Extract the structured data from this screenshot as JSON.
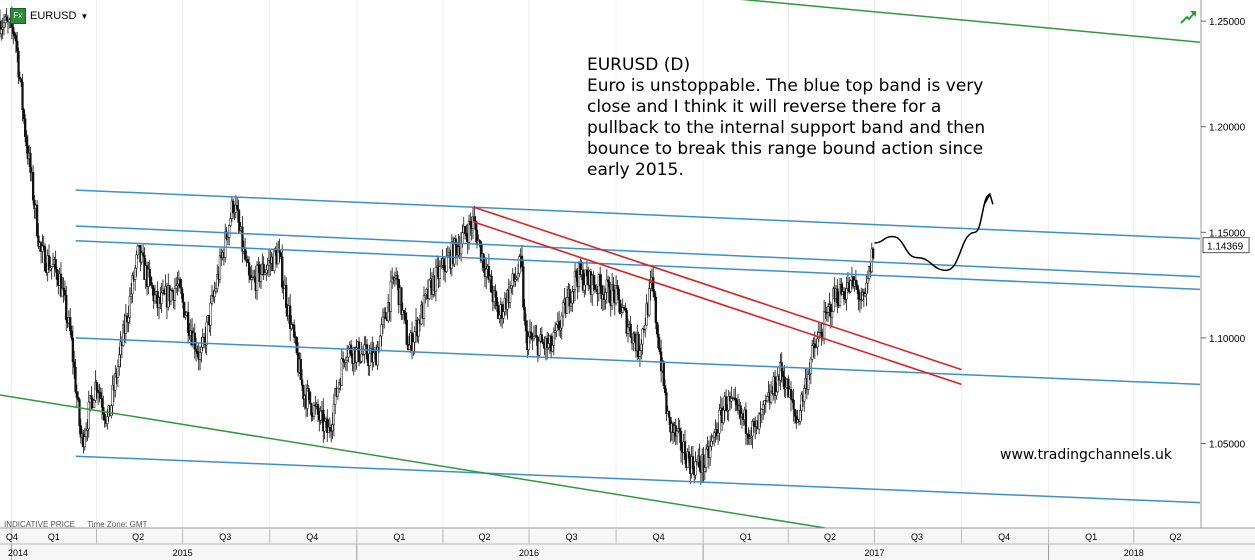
{
  "header": {
    "symbol": "EURUSD",
    "badge": "Fx"
  },
  "annotation": {
    "lines": [
      "EURUSD (D)",
      "Euro is unstoppable. The blue top band is very",
      "close and I think it will reverse there for a",
      "pullback to the internal support band and then",
      "bounce to break this range bound action since",
      "early 2015."
    ]
  },
  "watermark": "www.tradingchannels.uk",
  "footer": {
    "price_type": "INDICATIVE PRICE",
    "timezone": "Time Zone: GMT"
  },
  "colors": {
    "band": "#3a8fd0",
    "trend": "#2e9a3a",
    "red": "#e02020",
    "candle": "#111111"
  },
  "chart_data": {
    "type": "candlestick",
    "title": "EURUSD",
    "ylim": [
      1.01,
      1.26
    ],
    "y_ticks": [
      "1.25000",
      "1.20000",
      "1.15000",
      "1.10000",
      "1.05000"
    ],
    "last_price": "1.14369",
    "x_range": [
      "2014-12-20",
      "2018-06-10"
    ],
    "quarter_labels": [
      {
        "label": "Q4",
        "date": "2014-11-15"
      },
      {
        "label": "Q1",
        "date": "2015-02-15"
      },
      {
        "label": "Q2",
        "date": "2015-05-15"
      },
      {
        "label": "Q3",
        "date": "2015-08-15"
      },
      {
        "label": "Q4",
        "date": "2015-11-15"
      },
      {
        "label": "Q1",
        "date": "2016-02-15"
      },
      {
        "label": "Q2",
        "date": "2016-05-15"
      },
      {
        "label": "Q3",
        "date": "2016-08-15"
      },
      {
        "label": "Q4",
        "date": "2016-11-15"
      },
      {
        "label": "Q1",
        "date": "2017-02-15"
      },
      {
        "label": "Q2",
        "date": "2017-05-15"
      },
      {
        "label": "Q3",
        "date": "2017-08-15"
      },
      {
        "label": "Q4",
        "date": "2017-11-15"
      },
      {
        "label": "Q1",
        "date": "2018-02-15"
      },
      {
        "label": "Q2",
        "date": "2018-05-15"
      }
    ],
    "quarter_dividers": [
      "2015-01-01",
      "2015-04-01",
      "2015-07-01",
      "2015-10-01",
      "2016-01-01",
      "2016-04-01",
      "2016-07-01",
      "2016-10-01",
      "2017-01-01",
      "2017-04-01",
      "2017-07-01",
      "2017-10-01",
      "2018-01-01",
      "2018-04-01"
    ],
    "year_labels": [
      {
        "label": "2014",
        "date": "2014-12-10"
      },
      {
        "label": "2015",
        "date": "2015-07-01"
      },
      {
        "label": "2016",
        "date": "2016-07-01"
      },
      {
        "label": "2017",
        "date": "2017-07-01"
      },
      {
        "label": "2018",
        "date": "2018-04-01"
      }
    ],
    "year_dividers": [
      "2015-01-01",
      "2016-01-01",
      "2017-01-01",
      "2018-01-01"
    ],
    "price_path": [
      [
        "2014-12-20",
        1.25
      ],
      [
        "2015-01-05",
        1.245
      ],
      [
        "2015-01-15",
        1.2
      ],
      [
        "2015-02-01",
        1.14
      ],
      [
        "2015-02-20",
        1.13
      ],
      [
        "2015-03-05",
        1.1
      ],
      [
        "2015-03-16",
        1.05
      ],
      [
        "2015-04-01",
        1.08
      ],
      [
        "2015-04-13",
        1.06
      ],
      [
        "2015-05-15",
        1.14
      ],
      [
        "2015-06-05",
        1.115
      ],
      [
        "2015-06-25",
        1.125
      ],
      [
        "2015-07-20",
        1.09
      ],
      [
        "2015-08-24",
        1.165
      ],
      [
        "2015-09-10",
        1.125
      ],
      [
        "2015-10-10",
        1.14
      ],
      [
        "2015-11-05",
        1.075
      ],
      [
        "2015-12-02",
        1.055
      ],
      [
        "2015-12-20",
        1.095
      ],
      [
        "2016-01-20",
        1.09
      ],
      [
        "2016-02-11",
        1.13
      ],
      [
        "2016-02-25",
        1.095
      ],
      [
        "2016-03-20",
        1.125
      ],
      [
        "2016-05-03",
        1.155
      ],
      [
        "2016-05-30",
        1.11
      ],
      [
        "2016-06-23",
        1.135
      ],
      [
        "2016-06-27",
        1.1
      ],
      [
        "2016-07-25",
        1.095
      ],
      [
        "2016-08-20",
        1.13
      ],
      [
        "2016-09-30",
        1.12
      ],
      [
        "2016-10-25",
        1.095
      ],
      [
        "2016-11-08",
        1.125
      ],
      [
        "2016-11-25",
        1.06
      ],
      [
        "2016-12-20",
        1.04
      ],
      [
        "2017-01-03",
        1.04
      ],
      [
        "2017-01-25",
        1.07
      ],
      [
        "2017-02-25",
        1.055
      ],
      [
        "2017-03-25",
        1.085
      ],
      [
        "2017-04-10",
        1.06
      ],
      [
        "2017-04-25",
        1.09
      ],
      [
        "2017-05-20",
        1.12
      ],
      [
        "2017-06-10",
        1.125
      ],
      [
        "2017-06-20",
        1.115
      ],
      [
        "2017-06-30",
        1.143
      ]
    ],
    "blue_bands": [
      {
        "x": [
          "2015-03-10",
          "2018-06-10"
        ],
        "y": [
          1.17,
          1.147
        ]
      },
      {
        "x": [
          "2015-03-10",
          "2018-06-10"
        ],
        "y": [
          1.153,
          1.129
        ]
      },
      {
        "x": [
          "2015-03-10",
          "2018-06-10"
        ],
        "y": [
          1.146,
          1.123
        ]
      },
      {
        "x": [
          "2015-03-10",
          "2018-06-10"
        ],
        "y": [
          1.1,
          1.078
        ]
      },
      {
        "x": [
          "2015-03-10",
          "2018-06-10"
        ],
        "y": [
          1.044,
          1.022
        ]
      }
    ],
    "green_channel": [
      {
        "x": [
          "2014-12-20",
          "2017-05-10"
        ],
        "y": [
          1.073,
          1.01
        ]
      },
      {
        "x": [
          "2017-01-01",
          "2018-06-10"
        ],
        "y": [
          1.262,
          1.24
        ]
      }
    ],
    "red_lines": [
      {
        "x": [
          "2016-05-03",
          "2017-10-01"
        ],
        "y": [
          1.162,
          1.085
        ]
      },
      {
        "x": [
          "2016-05-03",
          "2017-10-01"
        ],
        "y": [
          1.155,
          1.078
        ]
      }
    ],
    "forecast_path": [
      [
        "2017-07-01",
        1.145
      ],
      [
        "2017-07-20",
        1.148
      ],
      [
        "2017-08-15",
        1.138
      ],
      [
        "2017-09-15",
        1.132
      ],
      [
        "2017-10-15",
        1.15
      ],
      [
        "2017-10-31",
        1.168
      ]
    ]
  }
}
